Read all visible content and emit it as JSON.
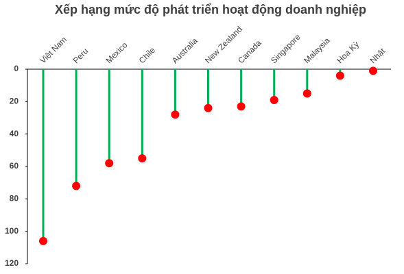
{
  "chart_data": {
    "type": "lollipop",
    "title": "Xếp hạng mức độ phát triển hoạt động doanh nghiệp",
    "categories": [
      "Việt Nam",
      "Peru",
      "Mexico",
      "Chile",
      "Australia",
      "New Zealand",
      "Canada",
      "Singapore",
      "Malaysia",
      "Hoa Kỳ",
      "Nhật"
    ],
    "values": [
      106,
      72,
      58,
      55,
      28,
      24,
      23,
      19,
      15,
      4,
      1
    ],
    "stem_color": "#00b050",
    "color": "#ff0000",
    "ylim": [
      0,
      120
    ],
    "yticks": [
      0,
      20,
      40,
      60,
      80,
      100,
      120
    ],
    "y_reversed": true,
    "grid": false
  }
}
